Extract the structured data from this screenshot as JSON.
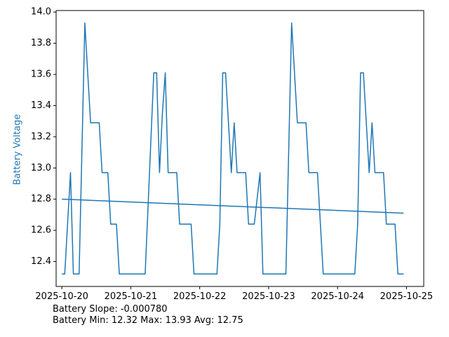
{
  "chart_data": {
    "type": "line",
    "title": "",
    "xlabel": "",
    "ylabel": "Battery Voltage",
    "ylabel_color": "#1f77b4",
    "series_color": "#1f77b4",
    "grid": false,
    "xlim": [
      "2025-10-19 22:00",
      "2025-10-25 06:00"
    ],
    "ylim": [
      12.24,
      14.01
    ],
    "x_ticks": [
      "2025-10-20",
      "2025-10-21",
      "2025-10-22",
      "2025-10-23",
      "2025-10-24",
      "2025-10-25"
    ],
    "y_ticks": [
      "12.4",
      "12.6",
      "12.8",
      "13.0",
      "13.2",
      "13.4",
      "13.6",
      "13.8",
      "14.0"
    ],
    "series": [
      {
        "values": [
          [
            "2025-10-20 00:00",
            12.32
          ],
          [
            "2025-10-20 01:00",
            12.32
          ],
          [
            "2025-10-20 03:00",
            12.97
          ],
          [
            "2025-10-20 04:00",
            12.32
          ],
          [
            "2025-10-20 06:00",
            12.32
          ],
          [
            "2025-10-20 08:00",
            13.93
          ],
          [
            "2025-10-20 10:00",
            13.29
          ],
          [
            "2025-10-20 13:00",
            13.29
          ],
          [
            "2025-10-20 14:00",
            12.97
          ],
          [
            "2025-10-20 16:00",
            12.97
          ],
          [
            "2025-10-20 17:00",
            12.64
          ],
          [
            "2025-10-20 19:00",
            12.64
          ],
          [
            "2025-10-20 20:00",
            12.32
          ],
          [
            "2025-10-21 05:00",
            12.32
          ],
          [
            "2025-10-21 08:00",
            13.61
          ],
          [
            "2025-10-21 09:00",
            13.61
          ],
          [
            "2025-10-21 10:00",
            12.97
          ],
          [
            "2025-10-21 11:00",
            13.35
          ],
          [
            "2025-10-21 12:00",
            13.61
          ],
          [
            "2025-10-21 13:00",
            12.97
          ],
          [
            "2025-10-21 16:00",
            12.97
          ],
          [
            "2025-10-21 17:00",
            12.64
          ],
          [
            "2025-10-21 21:00",
            12.64
          ],
          [
            "2025-10-21 22:00",
            12.32
          ],
          [
            "2025-10-22 06:00",
            12.32
          ],
          [
            "2025-10-22 07:00",
            12.64
          ],
          [
            "2025-10-22 08:00",
            13.61
          ],
          [
            "2025-10-22 09:00",
            13.61
          ],
          [
            "2025-10-22 11:00",
            12.97
          ],
          [
            "2025-10-22 12:00",
            13.29
          ],
          [
            "2025-10-22 13:00",
            12.97
          ],
          [
            "2025-10-22 16:00",
            12.97
          ],
          [
            "2025-10-22 17:00",
            12.64
          ],
          [
            "2025-10-22 19:00",
            12.64
          ],
          [
            "2025-10-22 21:00",
            12.97
          ],
          [
            "2025-10-22 22:00",
            12.32
          ],
          [
            "2025-10-23 06:00",
            12.32
          ],
          [
            "2025-10-23 08:00",
            13.93
          ],
          [
            "2025-10-23 10:00",
            13.29
          ],
          [
            "2025-10-23 13:00",
            13.29
          ],
          [
            "2025-10-23 14:00",
            12.97
          ],
          [
            "2025-10-23 17:00",
            12.97
          ],
          [
            "2025-10-23 19:00",
            12.32
          ],
          [
            "2025-10-24 06:00",
            12.32
          ],
          [
            "2025-10-24 07:00",
            12.64
          ],
          [
            "2025-10-24 08:00",
            13.61
          ],
          [
            "2025-10-24 09:00",
            13.61
          ],
          [
            "2025-10-24 11:00",
            12.97
          ],
          [
            "2025-10-24 12:00",
            13.29
          ],
          [
            "2025-10-24 13:00",
            12.97
          ],
          [
            "2025-10-24 16:00",
            12.97
          ],
          [
            "2025-10-24 17:00",
            12.64
          ],
          [
            "2025-10-24 20:00",
            12.64
          ],
          [
            "2025-10-24 21:00",
            12.32
          ],
          [
            "2025-10-24 23:00",
            12.32
          ]
        ]
      },
      {
        "values": [
          [
            "2025-10-20 00:00",
            12.8
          ],
          [
            "2025-10-24 23:00",
            12.71
          ]
        ]
      }
    ]
  },
  "stats": {
    "slope_line": "Battery Slope: -0.000780",
    "range_line": "Battery Min: 12.32 Max: 13.93 Avg: 12.75"
  }
}
